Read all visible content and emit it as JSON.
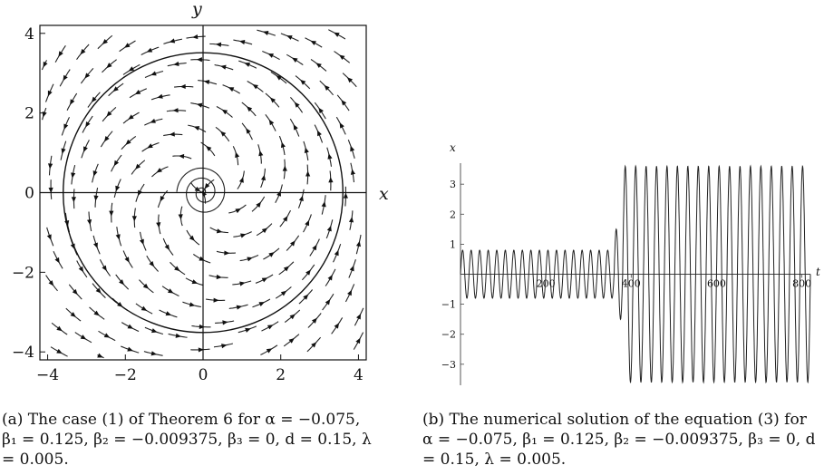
{
  "figure": {
    "panel_a": {
      "caption": "(a) The case (1) of Theorem 6 for α = −0.075, β₁ = 0.125, β₂ = −0.009375, β₃ = 0, d = 0.15, λ = 0.005.",
      "x_axis_label": "x",
      "y_axis_label": "y",
      "x_ticks": [
        "−4",
        "−2",
        "0",
        "2",
        "4"
      ],
      "y_ticks": [
        "4",
        "2",
        "0",
        "−2",
        "−4"
      ]
    },
    "panel_b": {
      "caption": "(b) The numerical solution of the equation (3) for α = −0.075, β₁ = 0.125, β₂ = −0.009375, β₃ = 0, d = 0.15, λ = 0.005.",
      "x_axis_label": "t",
      "y_axis_label": "x",
      "x_ticks": [
        "200",
        "400",
        "600",
        "800"
      ],
      "y_ticks": [
        "3",
        "2",
        "1",
        "−1",
        "−2",
        "−3"
      ]
    }
  },
  "chart_data": [
    {
      "type": "scatter",
      "title": "",
      "xlabel": "x",
      "ylabel": "y",
      "xlim": [
        -4.2,
        4.2
      ],
      "ylim": [
        -4.2,
        4.2
      ],
      "grid": false,
      "features": {
        "limit_cycle_radius": 3.6,
        "equilibrium": [
          0,
          0
        ],
        "plot_kind": "stream plot"
      }
    },
    {
      "type": "line",
      "title": "",
      "xlabel": "t",
      "ylabel": "x",
      "xlim": [
        0,
        820
      ],
      "ylim": [
        -3.7,
        3.7
      ],
      "grid": false,
      "series": [
        {
          "t_range": [
            0,
            360
          ],
          "amplitude": 0.8,
          "cycles": 18
        },
        {
          "t_range": [
            360,
            380
          ],
          "amplitude": 1.5,
          "cycles": 1
        },
        {
          "t_range": [
            380,
            820
          ],
          "amplitude": 3.6,
          "cycles": 18
        }
      ]
    }
  ]
}
